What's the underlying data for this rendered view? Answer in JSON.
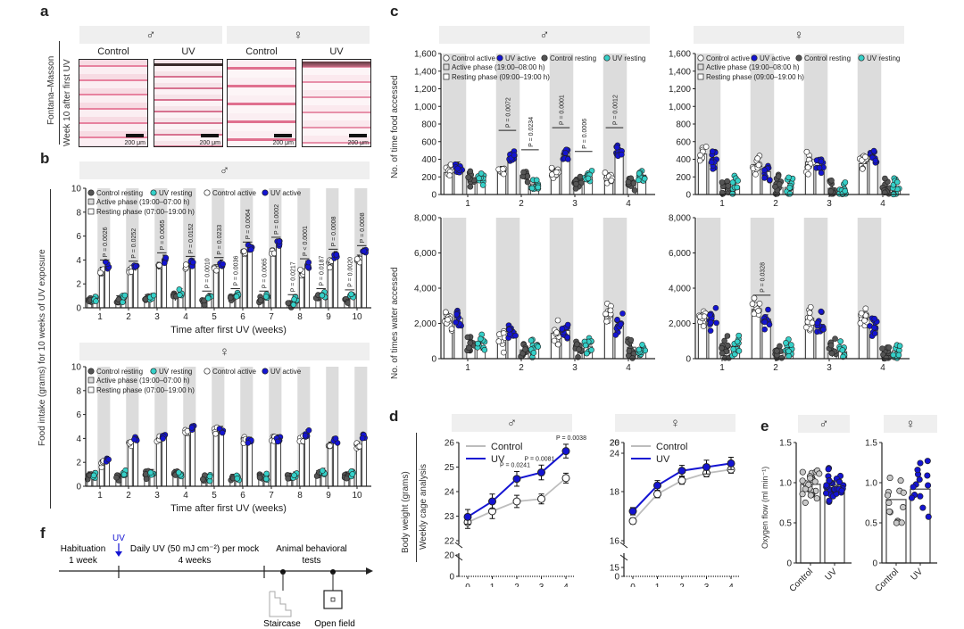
{
  "panel_labels": {
    "a": "a",
    "b": "b",
    "c": "c",
    "d": "d",
    "e": "e",
    "f": "f"
  },
  "symbols": {
    "male": "♂",
    "female": "♀"
  },
  "panel_a": {
    "ylabel_line1": "Fontana–Masson",
    "ylabel_line2": "Week 10 after first UV",
    "images": [
      {
        "sex": "♂",
        "condition": "Control",
        "scale": "200 μm"
      },
      {
        "sex": "♂",
        "condition": "UV",
        "scale": "200 μm"
      },
      {
        "sex": "♀",
        "condition": "Control",
        "scale": "200 μm"
      },
      {
        "sex": "♀",
        "condition": "UV",
        "scale": "200 μm"
      }
    ]
  },
  "chart_data": [
    {
      "id": "b-male",
      "type": "bar",
      "panel": "b",
      "title": "♂",
      "xlabel": "Time after first UV (weeks)",
      "ylabel": "Food intake (grams) for 10 weeks of UV exposure",
      "ylim": [
        0,
        10
      ],
      "yticks": [
        0,
        2,
        4,
        6,
        8,
        10
      ],
      "categories": [
        "1",
        "2",
        "3",
        "4",
        "5",
        "6",
        "7",
        "8",
        "9",
        "10"
      ],
      "legend": [
        "Control resting",
        "UV resting",
        "Control active",
        "UV active",
        "Active phase (19:00–07:00 h)",
        "Resting phase (07:00–19:00 h)"
      ],
      "series": [
        {
          "name": "Control resting",
          "values": [
            0.6,
            0.7,
            0.8,
            0.9,
            0.5,
            0.7,
            0.6,
            0.3,
            0.9,
            0.6
          ]
        },
        {
          "name": "UV resting",
          "values": [
            0.8,
            0.8,
            0.9,
            1.3,
            0.9,
            1.1,
            0.9,
            0.6,
            1.1,
            1.0
          ]
        },
        {
          "name": "Control active",
          "values": [
            3.1,
            3.1,
            3.5,
            3.4,
            3.3,
            4.6,
            4.6,
            2.9,
            3.7,
            4.1
          ]
        },
        {
          "name": "UV active",
          "values": [
            3.5,
            3.4,
            4.1,
            3.8,
            3.7,
            5.0,
            5.4,
            3.6,
            4.4,
            4.7
          ]
        }
      ],
      "annotations": [
        {
          "week": "1",
          "phase": "active",
          "text": "P = 0.0026"
        },
        {
          "week": "2",
          "phase": "active",
          "text": "P = 0.0252"
        },
        {
          "week": "3",
          "phase": "active",
          "text": "P = 0.0065"
        },
        {
          "week": "4",
          "phase": "active",
          "text": "P = 0.0152"
        },
        {
          "week": "5",
          "phase": "resting",
          "text": "P = 0.0010"
        },
        {
          "week": "5",
          "phase": "active",
          "text": "P = 0.0233"
        },
        {
          "week": "6",
          "phase": "resting",
          "text": "P = 0.0036"
        },
        {
          "week": "6",
          "phase": "active",
          "text": "P = 0.0064"
        },
        {
          "week": "7",
          "phase": "resting",
          "text": "P = 0.0065"
        },
        {
          "week": "7",
          "phase": "active",
          "text": "P = 0.0002"
        },
        {
          "week": "8",
          "phase": "resting",
          "text": "P = 0.0217"
        },
        {
          "week": "8",
          "phase": "active",
          "text": "P < 0.0001"
        },
        {
          "week": "9",
          "phase": "resting",
          "text": "P = 0.0187"
        },
        {
          "week": "9",
          "phase": "active",
          "text": "P = 0.0008"
        },
        {
          "week": "10",
          "phase": "resting",
          "text": "P = 0.0020"
        },
        {
          "week": "10",
          "phase": "active",
          "text": "P = 0.0008"
        }
      ]
    },
    {
      "id": "b-female",
      "type": "bar",
      "panel": "b",
      "title": "♀",
      "xlabel": "Time after first UV (weeks)",
      "ylabel": "Food intake (grams) for 10 weeks of UV exposure",
      "ylim": [
        0,
        10
      ],
      "yticks": [
        0,
        2,
        4,
        6,
        8,
        10
      ],
      "categories": [
        "1",
        "2",
        "3",
        "4",
        "5",
        "6",
        "7",
        "8",
        "9",
        "10"
      ],
      "legend": [
        "Control resting",
        "UV resting",
        "Control active",
        "UV active",
        "Active phase (19:00–07:00 h)",
        "Resting phase (07:00–19:00 h)"
      ],
      "series": [
        {
          "name": "Control resting",
          "values": [
            0.9,
            0.8,
            0.9,
            1.1,
            0.6,
            0.7,
            0.8,
            0.8,
            1.0,
            0.9
          ]
        },
        {
          "name": "UV resting",
          "values": [
            1.0,
            1.0,
            1.1,
            0.9,
            0.7,
            0.7,
            0.7,
            0.9,
            1.2,
            1.1
          ]
        },
        {
          "name": "Control active",
          "values": [
            1.9,
            3.5,
            4.0,
            4.5,
            4.6,
            3.8,
            4.0,
            3.9,
            3.4,
            3.4
          ]
        },
        {
          "name": "UV active",
          "values": [
            2.2,
            3.9,
            4.1,
            4.9,
            4.7,
            3.8,
            4.0,
            4.4,
            3.8,
            4.1
          ]
        }
      ],
      "annotations": []
    },
    {
      "id": "c-male-food",
      "type": "bar",
      "panel": "c",
      "title": "♂",
      "xlabel": "",
      "ylabel": "No. of time food accessed",
      "ylim": [
        0,
        1600
      ],
      "yticks": [
        0,
        200,
        400,
        600,
        800,
        1000,
        1200,
        1400,
        1600
      ],
      "categories": [
        "1",
        "2",
        "3",
        "4"
      ],
      "legend": [
        "Control active",
        "UV active",
        "Control resting",
        "UV resting",
        "Active phase (19:00–08:00 h)",
        "Resting phase (09:00–19:00 h)"
      ],
      "series": [
        {
          "name": "Control active",
          "values": [
            250,
            270,
            250,
            190
          ]
        },
        {
          "name": "UV active",
          "values": [
            320,
            440,
            470,
            470
          ]
        },
        {
          "name": "Control resting",
          "values": [
            190,
            220,
            110,
            140
          ]
        },
        {
          "name": "UV resting",
          "values": [
            180,
            120,
            200,
            220
          ]
        }
      ],
      "annotations": [
        {
          "week": "2",
          "phase": "active",
          "text": "P = 0.0072"
        },
        {
          "week": "2",
          "phase": "resting",
          "text": "P = 0.0234"
        },
        {
          "week": "3",
          "phase": "active",
          "text": "P = 0.0001"
        },
        {
          "week": "3",
          "phase": "resting",
          "text": "P = 0.0006"
        },
        {
          "week": "4",
          "phase": "active",
          "text": "P = 0.0012"
        }
      ]
    },
    {
      "id": "c-female-food",
      "type": "bar",
      "panel": "c",
      "title": "♀",
      "xlabel": "",
      "ylabel": "",
      "ylim": [
        0,
        1600
      ],
      "yticks": [
        0,
        200,
        400,
        600,
        800,
        1000,
        1200,
        1400,
        1600
      ],
      "categories": [
        "1",
        "2",
        "3",
        "4"
      ],
      "legend": [
        "Control active",
        "UV active",
        "Control resting",
        "UV resting",
        "Active phase (19:00–08:00 h)",
        "Resting phase (09:00–19:00 h)"
      ],
      "series": [
        {
          "name": "Control active",
          "values": [
            460,
            340,
            370,
            350
          ]
        },
        {
          "name": "UV active",
          "values": [
            370,
            260,
            330,
            400
          ]
        },
        {
          "name": "Control resting",
          "values": [
            80,
            80,
            70,
            50
          ]
        },
        {
          "name": "UV resting",
          "values": [
            90,
            80,
            60,
            70
          ]
        }
      ],
      "annotations": []
    },
    {
      "id": "c-male-water",
      "type": "bar",
      "panel": "c",
      "title": "",
      "xlabel": "Time after first UV (weeks)",
      "ylabel": "No. of times water accessed",
      "ylim": [
        0,
        8000
      ],
      "yticks": [
        0,
        2000,
        4000,
        6000,
        8000
      ],
      "categories": [
        "1",
        "2",
        "3",
        "4"
      ],
      "series": [
        {
          "name": "Control active",
          "values": [
            2300,
            1100,
            1450,
            2550
          ]
        },
        {
          "name": "UV active",
          "values": [
            2300,
            1550,
            1600,
            1850
          ]
        },
        {
          "name": "Control resting",
          "values": [
            750,
            500,
            500,
            650
          ]
        },
        {
          "name": "UV resting",
          "values": [
            700,
            600,
            700,
            400
          ]
        }
      ],
      "annotations": []
    },
    {
      "id": "c-female-water",
      "type": "bar",
      "panel": "c",
      "title": "",
      "xlabel": "Time after first UV (weeks)",
      "ylabel": "",
      "ylim": [
        0,
        8000
      ],
      "yticks": [
        0,
        2000,
        4000,
        6000,
        8000
      ],
      "categories": [
        "1",
        "2",
        "3",
        "4"
      ],
      "series": [
        {
          "name": "Control active",
          "values": [
            2350,
            2800,
            2300,
            2400
          ]
        },
        {
          "name": "UV active",
          "values": [
            2150,
            2250,
            1950,
            1850
          ]
        },
        {
          "name": "Control resting",
          "values": [
            500,
            450,
            350,
            300
          ]
        },
        {
          "name": "UV resting",
          "values": [
            700,
            550,
            400,
            450
          ]
        }
      ],
      "annotations": [
        {
          "week": "2",
          "phase": "active",
          "text": "P = 0.0328"
        }
      ]
    },
    {
      "id": "d-male",
      "type": "line",
      "panel": "d",
      "title": "♂",
      "xlabel": "Time after first UV (weeks)",
      "ylabel": "Body weight (grams)",
      "ylabel2": "Weekly cage analysis",
      "x": [
        0,
        1,
        2,
        3,
        4
      ],
      "yticks": [
        0,
        20,
        22,
        23,
        24,
        25,
        26
      ],
      "ylim": [
        22,
        26
      ],
      "legend": [
        "Control",
        "UV"
      ],
      "series": [
        {
          "name": "Control",
          "color": "#bdbdbd",
          "values": [
            22.75,
            23.2,
            23.6,
            23.7,
            24.55
          ],
          "err": [
            0.25,
            0.3,
            0.25,
            0.2,
            0.2
          ]
        },
        {
          "name": "UV",
          "color": "#1414d2",
          "values": [
            22.97,
            23.6,
            24.52,
            24.78,
            25.65
          ],
          "err": [
            0.3,
            0.3,
            0.3,
            0.3,
            0.28
          ]
        }
      ],
      "annotations": [
        {
          "x": 2,
          "text": "P = 0.0241"
        },
        {
          "x": 3,
          "text": "P = 0.0081"
        },
        {
          "x": 4,
          "text": "P = 0.0038"
        }
      ]
    },
    {
      "id": "d-female",
      "type": "line",
      "panel": "d",
      "title": "♀",
      "xlabel": "Time after first UV (weeks)",
      "ylabel": "",
      "x": [
        0,
        1,
        2,
        3,
        4
      ],
      "yticks": [
        0,
        15,
        16,
        18,
        20,
        24,
        26
      ],
      "ylim": [
        16,
        20
      ],
      "legend": [
        "Control",
        "UV"
      ],
      "series": [
        {
          "name": "Control",
          "color": "#bdbdbd",
          "values": [
            16.8,
            17.9,
            18.45,
            18.75,
            18.9
          ],
          "err": [
            0.12,
            0.15,
            0.15,
            0.15,
            0.15
          ]
        },
        {
          "name": "UV",
          "color": "#1414d2",
          "values": [
            17.2,
            18.25,
            18.85,
            19.0,
            19.15
          ],
          "err": [
            0.15,
            0.2,
            0.22,
            0.28,
            0.25
          ]
        }
      ],
      "annotations": []
    },
    {
      "id": "e-male",
      "type": "bar",
      "panel": "e",
      "title": "♂",
      "ylabel": "Oxygen flow (ml min⁻¹)",
      "ylim": [
        0,
        1.5
      ],
      "yticks": [
        0,
        0.5,
        1.0,
        1.5
      ],
      "categories": [
        "Control",
        "UV"
      ],
      "values": [
        0.98,
        0.97
      ]
    },
    {
      "id": "e-female",
      "type": "bar",
      "panel": "e",
      "title": "♀",
      "ylabel": "",
      "ylim": [
        0,
        1.5
      ],
      "yticks": [
        0,
        0.5,
        1.0,
        1.5
      ],
      "categories": [
        "Control",
        "UV"
      ],
      "values": [
        0.79,
        0.92
      ]
    }
  ],
  "panel_f": {
    "uv_marker": "UV",
    "segments": [
      {
        "line1": "Habituation",
        "line2": "1 week"
      },
      {
        "line1": "Daily UV (50 mJ cm⁻²) per mock",
        "line2": "4 weeks"
      },
      {
        "line1": "Animal behavioral",
        "line2": "tests"
      }
    ],
    "tests": [
      "Staircase",
      "Open field"
    ]
  },
  "colors": {
    "uv_active": "#1414d2",
    "uv_resting": "#35d0c8",
    "control_resting": "#555555",
    "control_active": "#ffffff",
    "band": "#efefef",
    "shade": "#dcdcdc",
    "control_line": "#bdbdbd"
  }
}
